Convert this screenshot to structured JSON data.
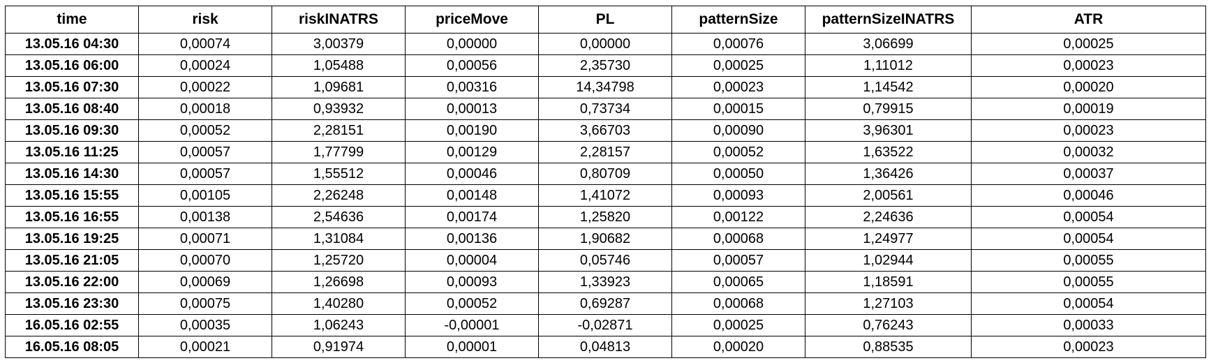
{
  "table": {
    "columns": [
      "time",
      "risk",
      "riskINATRS",
      "priceMove",
      "PL",
      "patternSize",
      "patternSizeINATRS",
      "ATR"
    ],
    "rows": [
      [
        "13.05.16 04:30",
        "0,00074",
        "3,00379",
        "0,00000",
        "0,00000",
        "0,00076",
        "3,06699",
        "0,00025"
      ],
      [
        "13.05.16 06:00",
        "0,00024",
        "1,05488",
        "0,00056",
        "2,35730",
        "0,00025",
        "1,11012",
        "0,00023"
      ],
      [
        "13.05.16 07:30",
        "0,00022",
        "1,09681",
        "0,00316",
        "14,34798",
        "0,00023",
        "1,14542",
        "0,00020"
      ],
      [
        "13.05.16 08:40",
        "0,00018",
        "0,93932",
        "0,00013",
        "0,73734",
        "0,00015",
        "0,79915",
        "0,00019"
      ],
      [
        "13.05.16 09:30",
        "0,00052",
        "2,28151",
        "0,00190",
        "3,66703",
        "0,00090",
        "3,96301",
        "0,00023"
      ],
      [
        "13.05.16 11:25",
        "0,00057",
        "1,77799",
        "0,00129",
        "2,28157",
        "0,00052",
        "1,63522",
        "0,00032"
      ],
      [
        "13.05.16 14:30",
        "0,00057",
        "1,55512",
        "0,00046",
        "0,80709",
        "0,00050",
        "1,36426",
        "0,00037"
      ],
      [
        "13.05.16 15:55",
        "0,00105",
        "2,26248",
        "0,00148",
        "1,41072",
        "0,00093",
        "2,00561",
        "0,00046"
      ],
      [
        "13.05.16 16:55",
        "0,00138",
        "2,54636",
        "0,00174",
        "1,25820",
        "0,00122",
        "2,24636",
        "0,00054"
      ],
      [
        "13.05.16 19:25",
        "0,00071",
        "1,31084",
        "0,00136",
        "1,90682",
        "0,00068",
        "1,24977",
        "0,00054"
      ],
      [
        "13.05.16 21:05",
        "0,00070",
        "1,25720",
        "0,00004",
        "0,05746",
        "0,00057",
        "1,02944",
        "0,00055"
      ],
      [
        "13.05.16 22:00",
        "0,00069",
        "1,26698",
        "0,00093",
        "1,33923",
        "0,00065",
        "1,18591",
        "0,00055"
      ],
      [
        "13.05.16 23:30",
        "0,00075",
        "1,40280",
        "0,00052",
        "0,69287",
        "0,00068",
        "1,27103",
        "0,00054"
      ],
      [
        "16.05.16 02:55",
        "0,00035",
        "1,06243",
        "-0,00001",
        "-0,02871",
        "0,00025",
        "0,76243",
        "0,00033"
      ],
      [
        "16.05.16 08:05",
        "0,00021",
        "0,91974",
        "0,00001",
        "0,04813",
        "0,00020",
        "0,88535",
        "0,00023"
      ]
    ]
  }
}
